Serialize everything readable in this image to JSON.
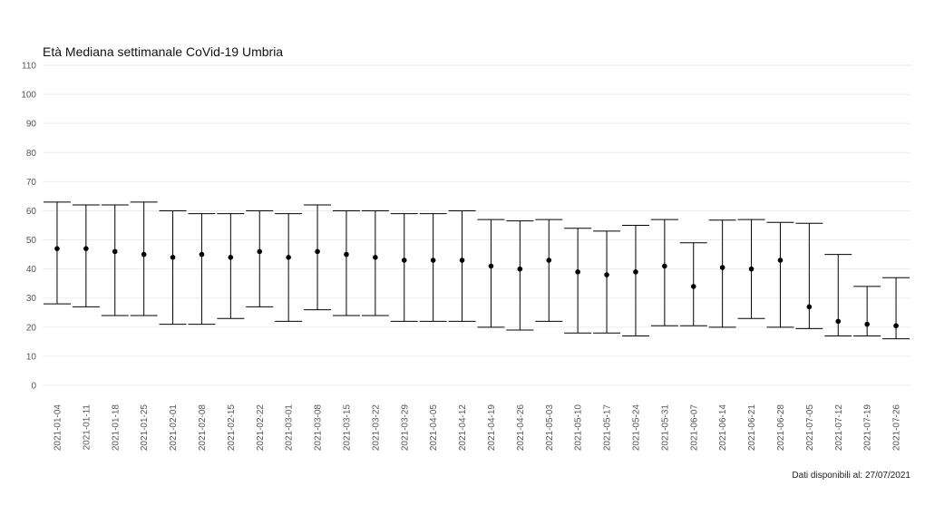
{
  "chart_data": {
    "type": "errorbar",
    "title": "Età Mediana settimanale CoVid-19 Umbria",
    "caption": "Dati disponibili al: 27/07/2021",
    "xlabel": "",
    "ylabel": "",
    "ylim": [
      0,
      110
    ],
    "yticks": [
      0,
      10,
      20,
      30,
      40,
      50,
      60,
      70,
      80,
      90,
      100,
      110
    ],
    "grid": true,
    "categories": [
      "2021-01-04",
      "2021-01-11",
      "2021-01-18",
      "2021-01-25",
      "2021-02-01",
      "2021-02-08",
      "2021-02-15",
      "2021-02-22",
      "2021-03-01",
      "2021-03-08",
      "2021-03-15",
      "2021-03-22",
      "2021-03-29",
      "2021-04-05",
      "2021-04-12",
      "2021-04-19",
      "2021-04-26",
      "2021-05-03",
      "2021-05-10",
      "2021-05-17",
      "2021-05-24",
      "2021-05-31",
      "2021-06-07",
      "2021-06-14",
      "2021-06-21",
      "2021-06-28",
      "2021-07-05",
      "2021-07-12",
      "2021-07-19",
      "2021-07-26"
    ],
    "median": [
      47,
      47,
      46,
      45,
      44,
      45,
      44,
      46,
      44,
      46,
      45,
      44,
      43,
      43,
      43,
      41,
      40,
      43,
      39,
      38,
      39,
      41,
      34,
      40.5,
      40,
      43,
      27,
      22,
      21,
      20.5
    ],
    "upper": [
      63,
      62,
      62,
      63,
      60,
      59,
      59,
      60,
      59,
      62,
      60,
      60,
      59,
      59,
      60,
      57,
      56.5,
      57,
      54,
      53,
      55,
      57,
      49,
      56.8,
      57,
      56,
      55.7,
      45,
      34,
      37
    ],
    "lower": [
      28,
      27,
      24,
      24,
      21,
      21,
      23,
      27,
      22,
      26,
      24,
      24,
      22,
      22,
      22,
      20,
      19,
      22,
      18,
      18,
      17,
      20.5,
      20.5,
      20,
      23,
      20,
      19.5,
      17,
      17,
      16
    ],
    "colors": {
      "marks": "#000000",
      "grid": "#ebebeb",
      "text": "#555555"
    }
  }
}
